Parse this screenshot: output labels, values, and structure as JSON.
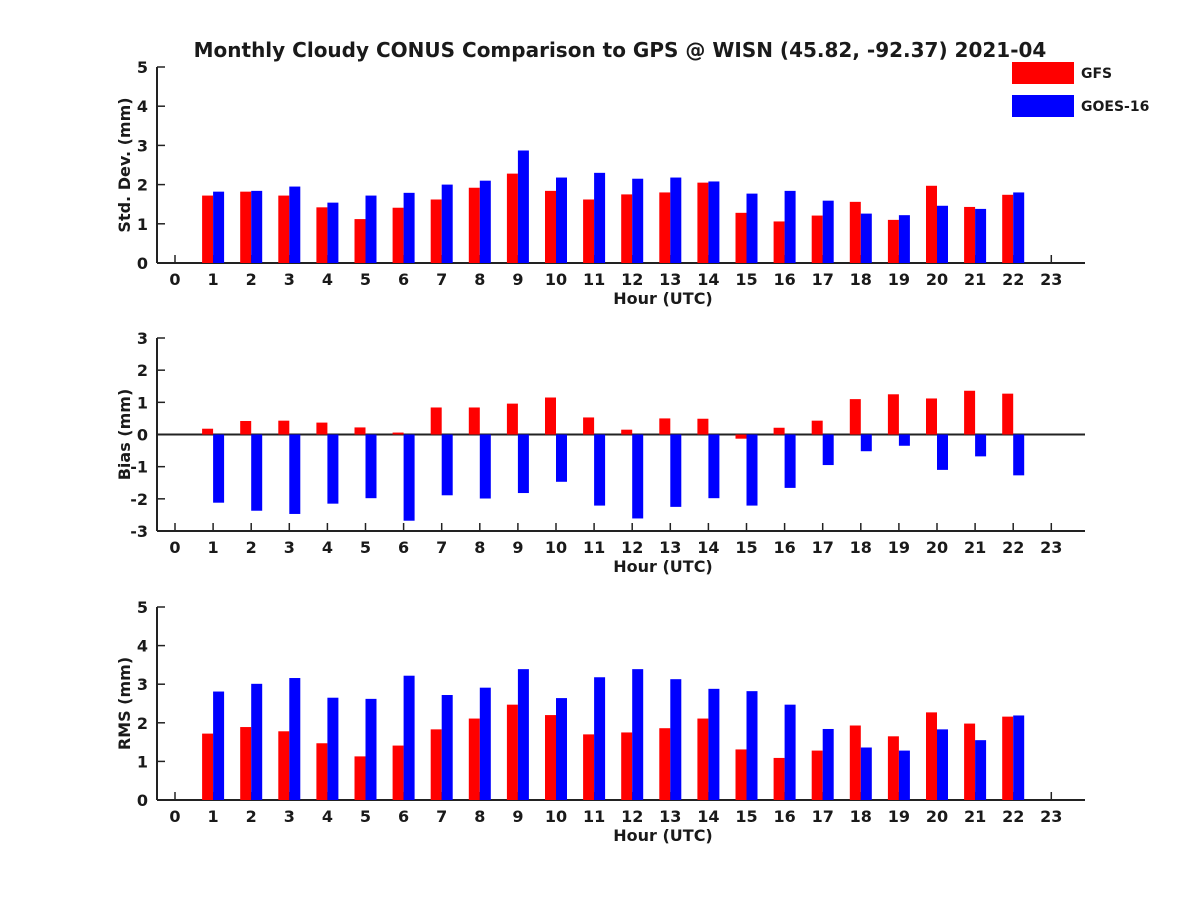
{
  "title": "Monthly Cloudy CONUS Comparison to GPS @ WISN (45.82, -92.37) 2021-04",
  "legend": [
    {
      "name": "GFS",
      "color": "#ff0000"
    },
    {
      "name": "GOES-16",
      "color": "#0000ff"
    }
  ],
  "chart_data": [
    {
      "type": "bar",
      "ylabel": "Std. Dev. (mm)",
      "xlabel": "Hour (UTC)",
      "ylim": [
        0,
        5
      ],
      "yticks": [
        0,
        1,
        2,
        3,
        4,
        5
      ],
      "xlim": [
        0,
        23
      ],
      "x": [
        1,
        2,
        3,
        4,
        5,
        6,
        7,
        8,
        9,
        10,
        11,
        12,
        13,
        14,
        15,
        16,
        17,
        18,
        19,
        20,
        21,
        22
      ],
      "xticks": [
        0,
        1,
        2,
        3,
        4,
        5,
        6,
        7,
        8,
        9,
        10,
        11,
        12,
        13,
        14,
        15,
        16,
        17,
        18,
        19,
        20,
        21,
        22,
        23
      ],
      "series": [
        {
          "name": "GFS",
          "color": "#ff0000",
          "values": [
            1.72,
            1.82,
            1.72,
            1.42,
            1.12,
            1.41,
            1.62,
            1.92,
            2.28,
            1.84,
            1.62,
            1.75,
            1.8,
            2.05,
            1.28,
            1.06,
            1.21,
            1.56,
            1.1,
            1.97,
            1.43,
            1.74
          ]
        },
        {
          "name": "GOES-16",
          "color": "#0000ff",
          "values": [
            1.82,
            1.84,
            1.95,
            1.54,
            1.72,
            1.79,
            2.0,
            2.1,
            2.87,
            2.18,
            2.3,
            2.15,
            2.18,
            2.08,
            1.77,
            1.84,
            1.59,
            1.26,
            1.22,
            1.46,
            1.38,
            1.8
          ]
        }
      ]
    },
    {
      "type": "bar",
      "ylabel": "Bias (mm)",
      "xlabel": "Hour (UTC)",
      "ylim": [
        -3,
        3
      ],
      "yticks": [
        -3,
        -2,
        -1,
        0,
        1,
        2,
        3
      ],
      "xlim": [
        0,
        23
      ],
      "zero_line": true,
      "x": [
        1,
        2,
        3,
        4,
        5,
        6,
        7,
        8,
        9,
        10,
        11,
        12,
        13,
        14,
        15,
        16,
        17,
        18,
        19,
        20,
        21,
        22
      ],
      "xticks": [
        0,
        1,
        2,
        3,
        4,
        5,
        6,
        7,
        8,
        9,
        10,
        11,
        12,
        13,
        14,
        15,
        16,
        17,
        18,
        19,
        20,
        21,
        22,
        23
      ],
      "series": [
        {
          "name": "GFS",
          "color": "#ff0000",
          "values": [
            0.18,
            0.42,
            0.43,
            0.37,
            0.22,
            0.06,
            0.84,
            0.84,
            0.96,
            1.15,
            0.53,
            0.15,
            0.5,
            0.49,
            -0.13,
            0.21,
            0.43,
            1.1,
            1.25,
            1.12,
            1.36,
            1.27
          ]
        },
        {
          "name": "GOES-16",
          "color": "#0000ff",
          "values": [
            -2.12,
            -2.37,
            -2.47,
            -2.15,
            -1.98,
            -2.68,
            -1.89,
            -1.99,
            -1.82,
            -1.47,
            -2.21,
            -2.61,
            -2.25,
            -1.98,
            -2.21,
            -1.66,
            -0.95,
            -0.52,
            -0.35,
            -1.1,
            -0.68,
            -1.27
          ]
        }
      ]
    },
    {
      "type": "bar",
      "ylabel": "RMS (mm)",
      "xlabel": "Hour (UTC)",
      "ylim": [
        0,
        5
      ],
      "yticks": [
        0,
        1,
        2,
        3,
        4,
        5
      ],
      "xlim": [
        0,
        23
      ],
      "x": [
        1,
        2,
        3,
        4,
        5,
        6,
        7,
        8,
        9,
        10,
        11,
        12,
        13,
        14,
        15,
        16,
        17,
        18,
        19,
        20,
        21,
        22
      ],
      "xticks": [
        0,
        1,
        2,
        3,
        4,
        5,
        6,
        7,
        8,
        9,
        10,
        11,
        12,
        13,
        14,
        15,
        16,
        17,
        18,
        19,
        20,
        21,
        22,
        23
      ],
      "series": [
        {
          "name": "GFS",
          "color": "#ff0000",
          "values": [
            1.72,
            1.89,
            1.78,
            1.47,
            1.13,
            1.41,
            1.83,
            2.11,
            2.47,
            2.2,
            1.7,
            1.75,
            1.86,
            2.11,
            1.31,
            1.09,
            1.28,
            1.93,
            1.65,
            2.27,
            1.98,
            2.16
          ]
        },
        {
          "name": "GOES-16",
          "color": "#0000ff",
          "values": [
            2.81,
            3.01,
            3.16,
            2.65,
            2.62,
            3.22,
            2.72,
            2.91,
            3.39,
            2.64,
            3.18,
            3.39,
            3.13,
            2.88,
            2.82,
            2.47,
            1.84,
            1.36,
            1.28,
            1.83,
            1.55,
            2.19
          ]
        }
      ]
    }
  ]
}
